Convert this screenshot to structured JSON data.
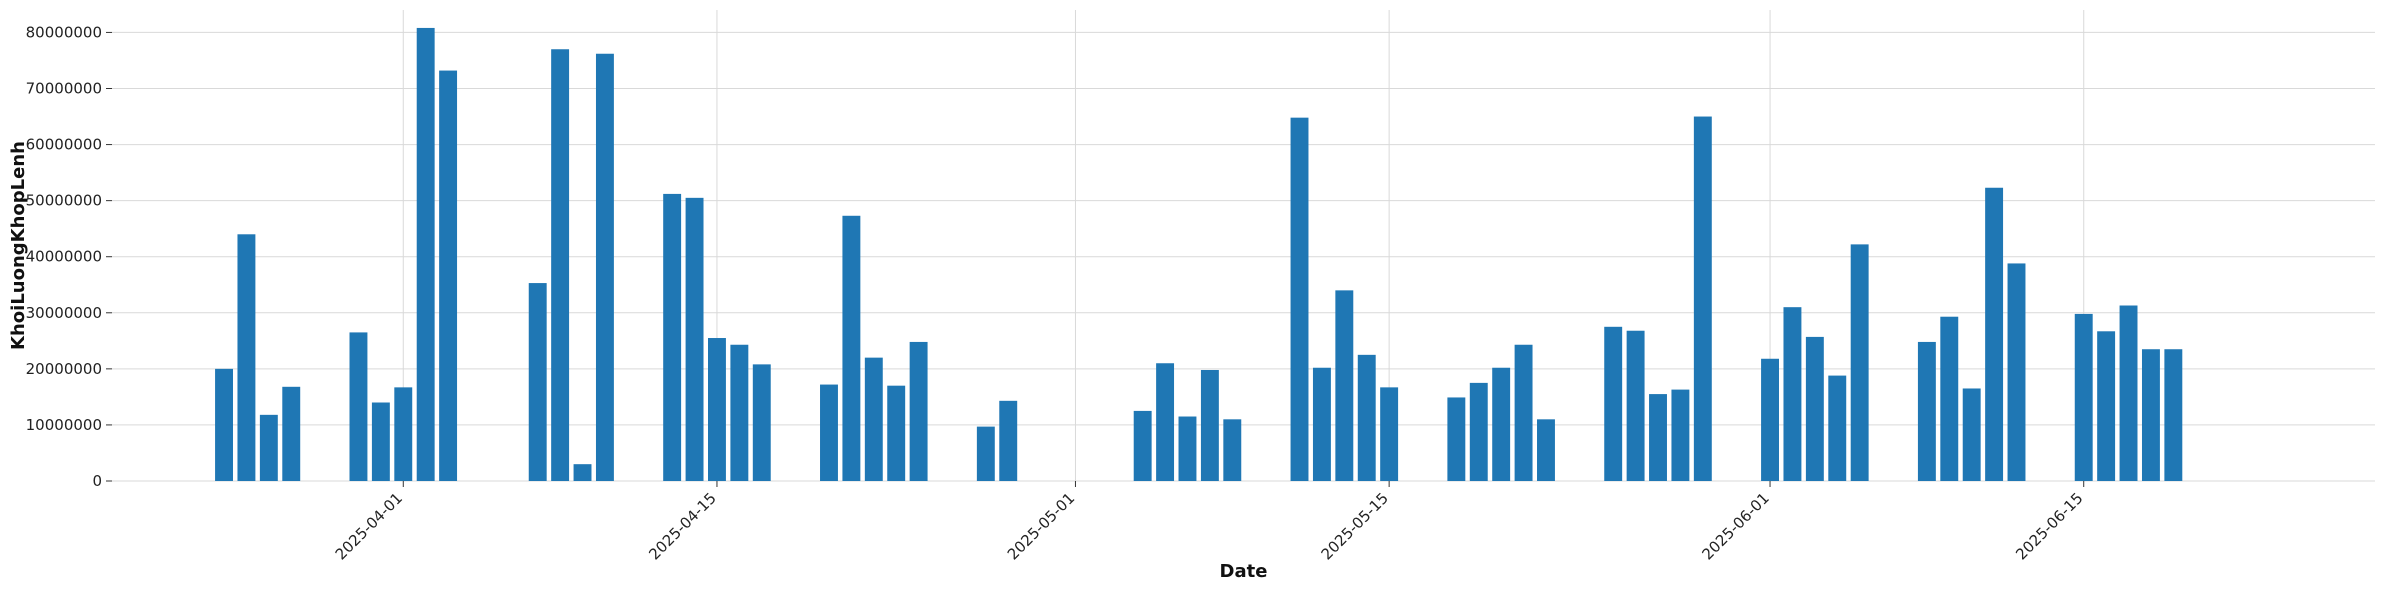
{
  "chart_data": {
    "type": "bar",
    "title": "",
    "xlabel": "Date",
    "ylabel": "KhoiLuongKhopLenh",
    "ylim": [
      0,
      84000000
    ],
    "xlim": [
      "2025-03-19",
      "2025-06-28"
    ],
    "grid": true,
    "bar_color": "#1f77b4",
    "y_ticks": [
      0,
      10000000,
      20000000,
      30000000,
      40000000,
      50000000,
      60000000,
      70000000,
      80000000
    ],
    "y_tick_labels": [
      "0",
      "10000000",
      "20000000",
      "30000000",
      "40000000",
      "50000000",
      "60000000",
      "70000000",
      "80000000"
    ],
    "x_ticks": [
      "2025-04-01",
      "2025-04-15",
      "2025-05-01",
      "2025-05-15",
      "2025-06-01",
      "2025-06-15"
    ],
    "x_tick_labels": [
      "2025-04-01",
      "2025-04-15",
      "2025-05-01",
      "2025-05-15",
      "2025-06-01",
      "2025-06-15"
    ],
    "x": [
      "2025-03-24",
      "2025-03-25",
      "2025-03-26",
      "2025-03-27",
      "2025-03-30",
      "2025-03-31",
      "2025-04-01",
      "2025-04-02",
      "2025-04-03",
      "2025-04-07",
      "2025-04-08",
      "2025-04-09",
      "2025-04-10",
      "2025-04-13",
      "2025-04-14",
      "2025-04-15",
      "2025-04-16",
      "2025-04-17",
      "2025-04-20",
      "2025-04-21",
      "2025-04-22",
      "2025-04-23",
      "2025-04-24",
      "2025-04-27",
      "2025-04-28",
      "2025-05-04",
      "2025-05-05",
      "2025-05-06",
      "2025-05-07",
      "2025-05-08",
      "2025-05-11",
      "2025-05-12",
      "2025-05-13",
      "2025-05-14",
      "2025-05-15",
      "2025-05-18",
      "2025-05-19",
      "2025-05-20",
      "2025-05-21",
      "2025-05-22",
      "2025-05-25",
      "2025-05-26",
      "2025-05-27",
      "2025-05-28",
      "2025-05-29",
      "2025-06-01",
      "2025-06-02",
      "2025-06-03",
      "2025-06-04",
      "2025-06-05",
      "2025-06-08",
      "2025-06-09",
      "2025-06-10",
      "2025-06-11",
      "2025-06-12",
      "2025-06-15",
      "2025-06-16",
      "2025-06-17",
      "2025-06-18",
      "2025-06-19"
    ],
    "values": [
      20000000,
      44000000,
      11800000,
      16800000,
      26500000,
      14000000,
      16700000,
      80800000,
      73200000,
      35300000,
      77000000,
      3000000,
      76200000,
      51200000,
      50500000,
      25500000,
      24300000,
      20800000,
      17200000,
      47300000,
      22000000,
      17000000,
      24800000,
      9700000,
      14300000,
      12500000,
      21000000,
      11500000,
      19800000,
      11000000,
      64800000,
      20200000,
      34000000,
      22500000,
      16700000,
      14900000,
      17500000,
      20200000,
      24300000,
      11000000,
      27500000,
      26800000,
      15500000,
      16300000,
      65000000,
      21800000,
      31000000,
      25700000,
      18800000,
      42200000,
      24800000,
      29300000,
      16500000,
      52300000,
      38800000,
      29800000,
      26700000,
      31300000,
      23500000,
      23500000
    ]
  }
}
